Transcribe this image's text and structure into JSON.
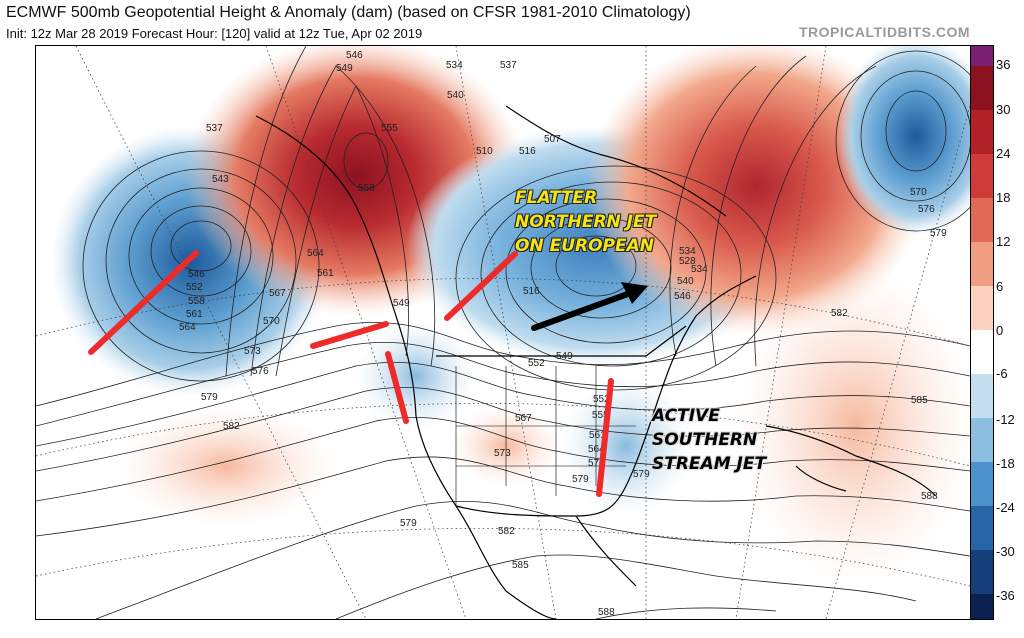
{
  "header": {
    "title": "ECMWF 500mb Geopotential Height & Anomaly (dam) (based on CFSR 1981-2010 Climatology)",
    "subtitle": "Init: 12z Mar 28 2019   Forecast Hour: [120]   valid at 12z Tue, Apr 02 2019",
    "credit": "TROPICALTIDBITS.COM"
  },
  "colorbar": {
    "labels": [
      "36",
      "30",
      "24",
      "18",
      "12",
      "6",
      "0",
      "-6",
      "-12",
      "-18",
      "-24",
      "-30",
      "-36"
    ],
    "colors": [
      "#7b1f72",
      "#8c1220",
      "#b22028",
      "#cf3b3a",
      "#e06a55",
      "#f09d82",
      "#fbd2be",
      "#ffffff",
      "#c6dff0",
      "#8cbee0",
      "#4c91c9",
      "#2664a6",
      "#143f7a",
      "#0b2150"
    ]
  },
  "contour_labels": [
    "546",
    "549",
    "537",
    "534",
    "540",
    "555",
    "537",
    "543",
    "558",
    "546",
    "552",
    "558",
    "561",
    "564",
    "564",
    "561",
    "567",
    "570",
    "573",
    "576",
    "579",
    "582",
    "549",
    "510",
    "507",
    "516",
    "534",
    "528",
    "534",
    "540",
    "546",
    "516",
    "552",
    "549",
    "567",
    "573",
    "570",
    "576",
    "579",
    "582",
    "585",
    "579",
    "582",
    "585",
    "588",
    "588",
    "579",
    "552",
    "555",
    "561",
    "564",
    "570",
    "579"
  ],
  "annotations": {
    "northern": [
      "FLATTER",
      "NORTHERN JET",
      "ON EUROPEAN"
    ],
    "southern": [
      "ACTIVE",
      "SOUTHERN",
      "STREAM JET"
    ]
  },
  "colors": {
    "annotation_yellow": "#f5e514",
    "marker_red": "#ee2a2a",
    "arrow_black": "#000000"
  }
}
